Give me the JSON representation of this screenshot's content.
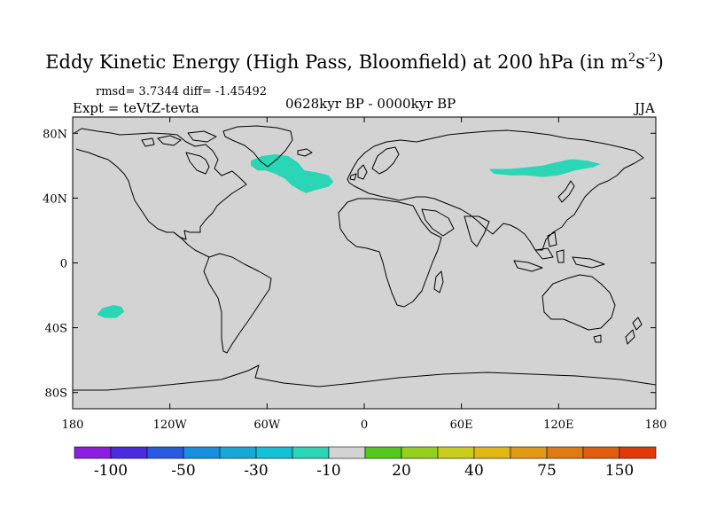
{
  "title": {
    "main": "Eddy Kinetic Energy (High Pass, Bloomfield) at 200 hPa (in m",
    "sup1": "2",
    "mid": "s",
    "sup2": "-2",
    "end": ")"
  },
  "stats": "rmsd= 3.7344 diff= -1.45492",
  "expt": "Expt = teVtZ-tevta",
  "period": "0628kyr BP - 0000kyr BP",
  "season": "JJA",
  "map": {
    "projection": "cylindrical-equidistant",
    "lon_range": [
      -180,
      180
    ],
    "lat_range": [
      -90,
      90
    ],
    "background_color": "#d3d3d3",
    "coast_color": "#000000",
    "x_ticks": [
      {
        "lon": -180,
        "label": "180"
      },
      {
        "lon": -120,
        "label": "120W"
      },
      {
        "lon": -60,
        "label": "60W"
      },
      {
        "lon": 0,
        "label": "0"
      },
      {
        "lon": 60,
        "label": "60E"
      },
      {
        "lon": 120,
        "label": "120E"
      },
      {
        "lon": 180,
        "label": "180"
      }
    ],
    "y_ticks": [
      {
        "lat": 80,
        "label": "80N"
      },
      {
        "lat": 40,
        "label": "40N"
      },
      {
        "lat": 0,
        "label": "0"
      },
      {
        "lat": -40,
        "label": "40S"
      },
      {
        "lat": -80,
        "label": "80S"
      }
    ],
    "anomaly_patches": [
      {
        "name": "north-atlantic-patch",
        "color": "#2ad6b5",
        "value_range": [
          -10,
          -5
        ],
        "outline": [
          [
            -70,
            63
          ],
          [
            -63,
            66
          ],
          [
            -55,
            67
          ],
          [
            -47,
            66
          ],
          [
            -41,
            62
          ],
          [
            -37,
            57
          ],
          [
            -30,
            56
          ],
          [
            -22,
            54
          ],
          [
            -19,
            50
          ],
          [
            -22,
            47
          ],
          [
            -30,
            45
          ],
          [
            -36,
            43
          ],
          [
            -40,
            45
          ],
          [
            -45,
            48
          ],
          [
            -49,
            52
          ],
          [
            -55,
            55
          ],
          [
            -61,
            57
          ],
          [
            -66,
            57
          ],
          [
            -70,
            60
          ]
        ]
      },
      {
        "name": "central-asia-patch",
        "color": "#2ad6b5",
        "value_range": [
          -10,
          -5
        ],
        "outline": [
          [
            77,
            58
          ],
          [
            90,
            58
          ],
          [
            100,
            59
          ],
          [
            110,
            60
          ],
          [
            118,
            62
          ],
          [
            128,
            64
          ],
          [
            138,
            63
          ],
          [
            146,
            61
          ],
          [
            141,
            59
          ],
          [
            130,
            57
          ],
          [
            120,
            54
          ],
          [
            110,
            53
          ],
          [
            100,
            54
          ],
          [
            90,
            54
          ],
          [
            80,
            55
          ]
        ]
      },
      {
        "name": "south-pacific-patch",
        "color": "#2ad6b5",
        "value_range": [
          -10,
          -5
        ],
        "outline": [
          [
            -162,
            -28
          ],
          [
            -155,
            -26
          ],
          [
            -150,
            -27
          ],
          [
            -148,
            -30
          ],
          [
            -153,
            -34
          ],
          [
            -160,
            -34
          ],
          [
            -165,
            -32
          ]
        ]
      }
    ]
  },
  "colorbar": {
    "colors": [
      "#8a1fe0",
      "#4a2be0",
      "#2a5ae0",
      "#1a8fe0",
      "#17a8d8",
      "#15c1d6",
      "#2ad6b5",
      "#d3d3d3",
      "#55c81d",
      "#96cf1e",
      "#c8ce1b",
      "#e0b816",
      "#e09a14",
      "#e07a12",
      "#e05c10",
      "#e03a0c"
    ],
    "labels": [
      {
        "after_box": 1,
        "text": "-100"
      },
      {
        "after_box": 3,
        "text": "-50"
      },
      {
        "after_box": 5,
        "text": "-30"
      },
      {
        "after_box": 7,
        "text": "-10"
      },
      {
        "after_box": 9,
        "text": "20"
      },
      {
        "after_box": 11,
        "text": "40"
      },
      {
        "after_box": 13,
        "text": "75"
      },
      {
        "after_box": 15,
        "text": "150"
      }
    ]
  }
}
